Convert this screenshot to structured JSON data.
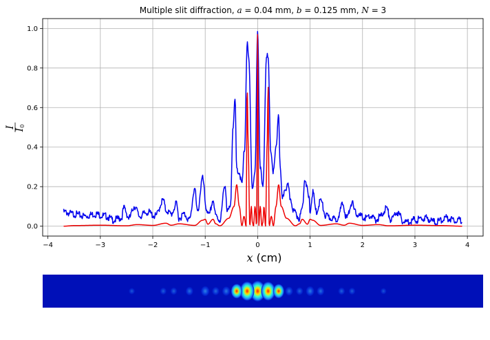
{
  "chart_data": [
    {
      "type": "line",
      "title_prefix": "Multiple slit diffraction, ",
      "title_params": [
        {
          "sym": "a",
          "eq": " = 0.04 mm"
        },
        {
          "sym": "b",
          "eq": " = 0.125 mm"
        },
        {
          "sym": "N",
          "eq": " = 3"
        }
      ],
      "xlabel_symbol": "x",
      "xlabel_unit": " (cm)",
      "ylabel_num": "I",
      "ylabel_den": "I",
      "ylabel_den_sub": "0",
      "xlim": [
        -4.1,
        4.3
      ],
      "ylim": [
        -0.05,
        1.05
      ],
      "xticks": [
        -4,
        -3,
        -2,
        -1,
        0,
        1,
        2,
        3,
        4
      ],
      "xtick_labels": [
        "−4",
        "−3",
        "−2",
        "−1",
        "0",
        "1",
        "2",
        "3",
        "4"
      ],
      "yticks": [
        0.0,
        0.2,
        0.4,
        0.6,
        0.8,
        1.0
      ],
      "ytick_labels": [
        "0.0",
        "0.2",
        "0.4",
        "0.6",
        "0.8",
        "1.0"
      ],
      "grid": true,
      "series": [
        {
          "color": "#0000ee",
          "style": "measured",
          "x": [
            -3.7,
            -3.5,
            -3.3,
            -3.1,
            -2.9,
            -2.75,
            -2.6,
            -2.55,
            -2.45,
            -2.35,
            -2.25,
            -2.1,
            -1.95,
            -1.8,
            -1.75,
            -1.65,
            -1.55,
            -1.5,
            -1.4,
            -1.3,
            -1.2,
            -1.15,
            -1.05,
            -0.98,
            -0.93,
            -0.85,
            -0.8,
            -0.72,
            -0.62,
            -0.58,
            -0.52,
            -0.47,
            -0.43,
            -0.4,
            -0.35,
            -0.3,
            -0.25,
            -0.2,
            -0.17,
            -0.1,
            -0.05,
            0.0,
            0.05,
            0.1,
            0.17,
            0.2,
            0.25,
            0.3,
            0.35,
            0.4,
            0.43,
            0.47,
            0.52,
            0.58,
            0.62,
            0.7,
            0.8,
            0.85,
            0.9,
            0.98,
            1.0,
            1.05,
            1.12,
            1.2,
            1.3,
            1.4,
            1.5,
            1.55,
            1.62,
            1.7,
            1.8,
            1.85,
            1.95,
            2.05,
            2.15,
            2.25,
            2.35,
            2.45,
            2.55,
            2.65,
            2.8,
            3.0,
            3.2,
            3.4,
            3.6,
            3.8,
            3.9
          ],
          "values": [
            0.08,
            0.07,
            0.06,
            0.07,
            0.06,
            0.04,
            0.05,
            0.1,
            0.05,
            0.11,
            0.06,
            0.08,
            0.06,
            0.14,
            0.09,
            0.07,
            0.12,
            0.05,
            0.07,
            0.04,
            0.2,
            0.08,
            0.25,
            0.1,
            0.06,
            0.14,
            0.06,
            0.04,
            0.22,
            0.08,
            0.1,
            0.52,
            0.64,
            0.3,
            0.28,
            0.22,
            0.4,
            0.93,
            0.85,
            0.2,
            0.28,
            1.0,
            0.3,
            0.2,
            0.88,
            0.85,
            0.39,
            0.28,
            0.4,
            0.58,
            0.3,
            0.14,
            0.2,
            0.21,
            0.15,
            0.08,
            0.05,
            0.1,
            0.25,
            0.15,
            0.08,
            0.18,
            0.08,
            0.14,
            0.06,
            0.05,
            0.04,
            0.07,
            0.12,
            0.05,
            0.13,
            0.08,
            0.06,
            0.05,
            0.06,
            0.04,
            0.06,
            0.1,
            0.04,
            0.08,
            0.03,
            0.04,
            0.05,
            0.03,
            0.05,
            0.04,
            0.04
          ]
        },
        {
          "color": "#ee0000",
          "style": "theory",
          "x": [
            -3.7,
            -3.5,
            -3.0,
            -2.5,
            -2.3,
            -2.0,
            -1.75,
            -1.65,
            -1.5,
            -1.2,
            -1.05,
            -1.0,
            -0.95,
            -0.85,
            -0.8,
            -0.72,
            -0.55,
            -0.45,
            -0.4,
            -0.35,
            -0.3,
            -0.26,
            -0.22,
            -0.2,
            -0.18,
            -0.15,
            -0.12,
            -0.1,
            -0.08,
            -0.05,
            -0.02,
            0.0,
            0.02,
            0.05,
            0.08,
            0.1,
            0.12,
            0.15,
            0.18,
            0.2,
            0.22,
            0.26,
            0.3,
            0.35,
            0.4,
            0.45,
            0.55,
            0.72,
            0.8,
            0.85,
            0.95,
            1.0,
            1.05,
            1.2,
            1.5,
            1.65,
            1.75,
            2.0,
            2.3,
            2.5,
            3.0,
            3.5,
            3.9
          ],
          "values": [
            0.0,
            0.003,
            0.005,
            0.002,
            0.008,
            0.004,
            0.015,
            0.005,
            0.012,
            0.004,
            0.03,
            0.035,
            0.01,
            0.035,
            0.012,
            0.002,
            0.04,
            0.1,
            0.21,
            0.1,
            0.002,
            0.05,
            0.0,
            0.71,
            0.4,
            0.0,
            0.1,
            0.02,
            0.0,
            0.1,
            0.0,
            0.98,
            0.0,
            0.1,
            0.0,
            0.02,
            0.1,
            0.0,
            0.4,
            0.71,
            0.0,
            0.05,
            0.002,
            0.1,
            0.21,
            0.1,
            0.04,
            0.002,
            0.012,
            0.035,
            0.01,
            0.035,
            0.03,
            0.004,
            0.012,
            0.005,
            0.015,
            0.004,
            0.008,
            0.002,
            0.005,
            0.003,
            0.0
          ]
        }
      ]
    },
    {
      "type": "heatmap",
      "colormap": "jet",
      "x_range": [
        -4.1,
        4.3
      ],
      "spots": [
        {
          "x": 0.0,
          "intensity": 1.0
        },
        {
          "x": -0.2,
          "intensity": 0.9
        },
        {
          "x": 0.2,
          "intensity": 0.88
        },
        {
          "x": -0.4,
          "intensity": 0.6
        },
        {
          "x": 0.4,
          "intensity": 0.58
        },
        {
          "x": -0.6,
          "intensity": 0.25
        },
        {
          "x": 0.6,
          "intensity": 0.22
        },
        {
          "x": -0.8,
          "intensity": 0.18
        },
        {
          "x": 0.8,
          "intensity": 0.15
        },
        {
          "x": -1.0,
          "intensity": 0.3
        },
        {
          "x": 1.0,
          "intensity": 0.28
        },
        {
          "x": -1.3,
          "intensity": 0.2
        },
        {
          "x": 1.2,
          "intensity": 0.2
        },
        {
          "x": -1.6,
          "intensity": 0.12
        },
        {
          "x": 1.6,
          "intensity": 0.12
        },
        {
          "x": -1.8,
          "intensity": 0.1
        },
        {
          "x": 1.8,
          "intensity": 0.1
        },
        {
          "x": -2.4,
          "intensity": 0.06
        },
        {
          "x": 2.4,
          "intensity": 0.05
        }
      ]
    }
  ]
}
